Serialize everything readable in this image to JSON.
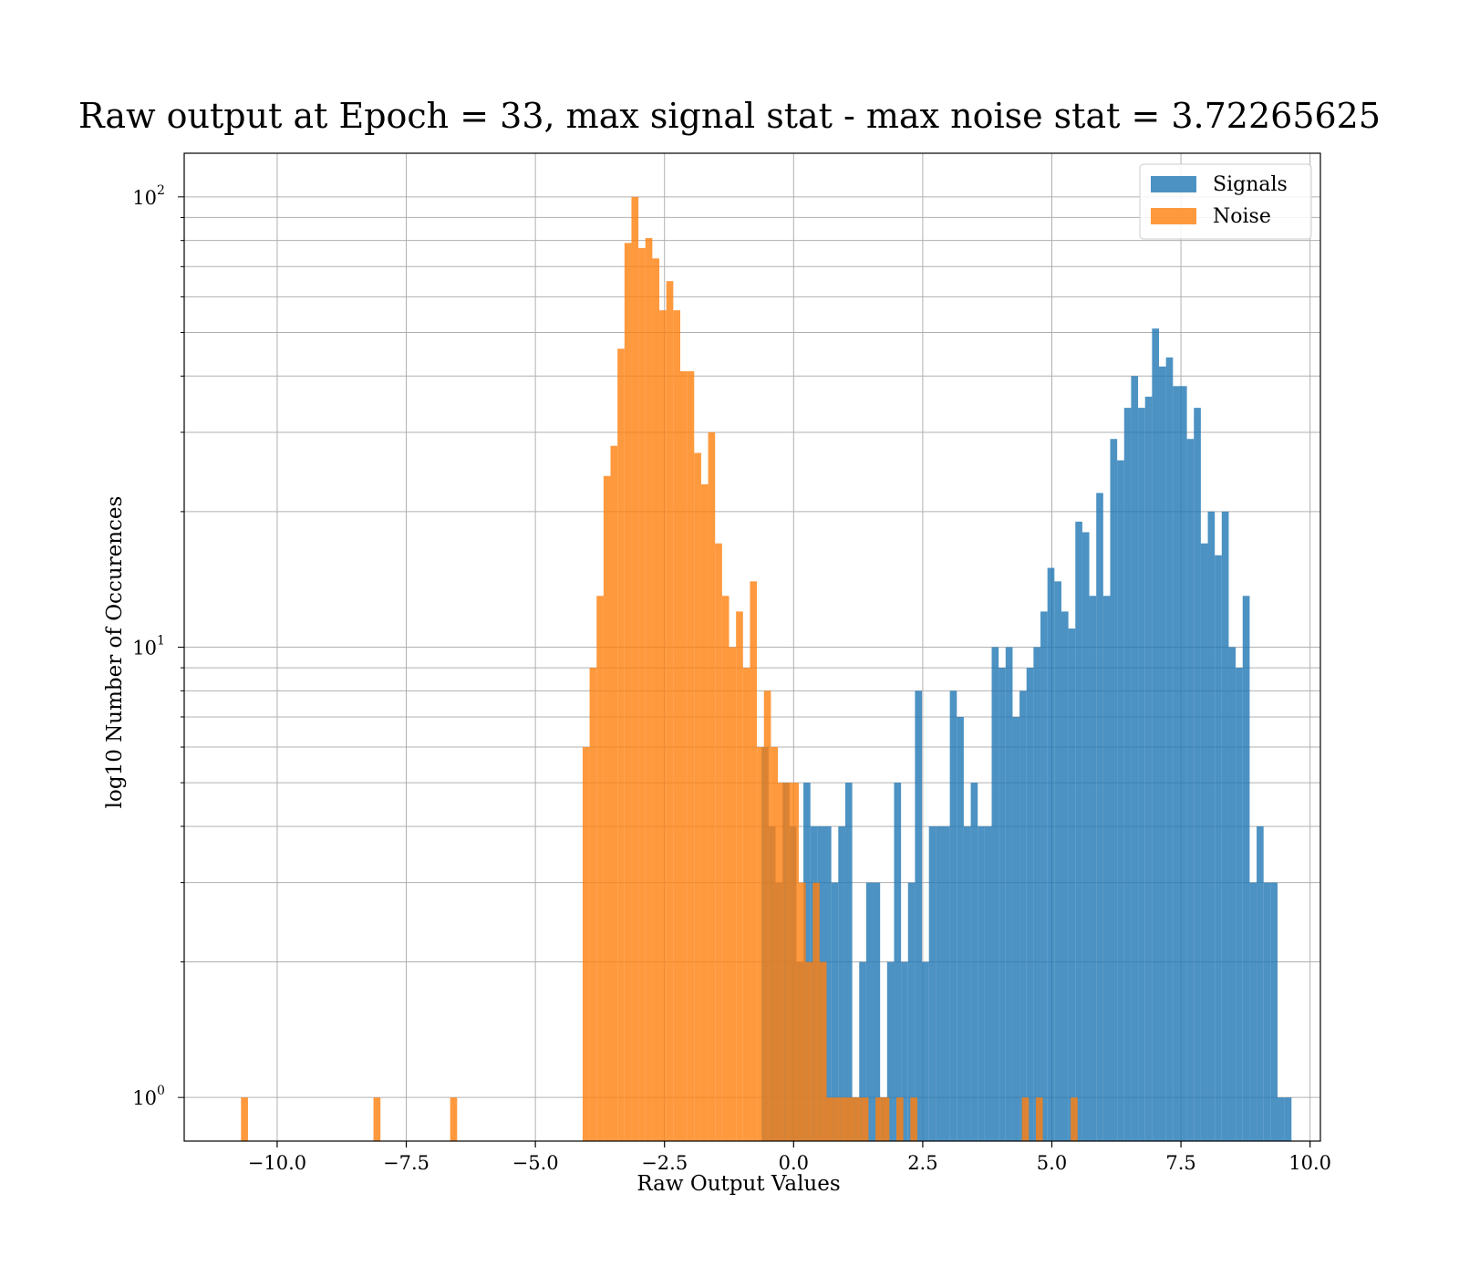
{
  "chart_data": {
    "type": "bar",
    "subtype": "histogram",
    "title": "Raw output at Epoch = 33, max signal stat - max noise stat = 3.72265625",
    "xlabel": "Raw Output Values",
    "ylabel": "log10 Number of Occurences",
    "xlim": [
      -11.8,
      10.2
    ],
    "ylim": [
      0.8,
      125
    ],
    "yscale": "log",
    "xticks": [
      -10.0,
      -7.5,
      -5.0,
      -2.5,
      0.0,
      2.5,
      5.0,
      7.5,
      10.0
    ],
    "xtick_labels": [
      "−10.0",
      "−7.5",
      "−5.0",
      "−2.5",
      "0.0",
      "2.5",
      "5.0",
      "7.5",
      "10.0"
    ],
    "yticks": [
      {
        "base": "10",
        "exp": "0",
        "value": 1
      },
      {
        "base": "10",
        "exp": "1",
        "value": 10
      },
      {
        "base": "10",
        "exp": "2",
        "value": 100
      }
    ],
    "grid": true,
    "legend_position": "top-right",
    "series": [
      {
        "name": "Signals",
        "color": "#1f77b4",
        "opacity": 0.8,
        "bin_edges_start": -0.62,
        "bin_width": 0.135,
        "values": [
          6,
          4,
          3,
          5,
          4,
          2,
          5,
          4,
          4,
          4,
          3,
          4,
          5,
          1,
          2,
          3,
          3,
          1,
          2,
          5,
          2,
          3,
          8,
          2,
          4,
          4,
          4,
          8,
          7,
          4,
          5,
          4,
          4,
          10,
          9,
          10,
          7,
          8,
          9,
          10,
          12,
          15,
          14,
          12,
          11,
          19,
          18,
          13,
          22,
          13,
          29,
          26,
          34,
          40,
          34,
          36,
          51,
          42,
          44,
          38,
          38,
          29,
          34,
          17,
          20,
          16,
          20,
          10,
          9,
          13,
          3,
          4,
          3,
          3,
          1,
          1
        ]
      },
      {
        "name": "Noise",
        "color": "#ff7f0e",
        "opacity": 0.8,
        "bin_edges_start": -10.7,
        "bin_width": 0.135,
        "values": [
          1,
          0,
          0,
          0,
          0,
          0,
          0,
          0,
          0,
          0,
          0,
          0,
          0,
          0,
          0,
          0,
          0,
          0,
          0,
          1,
          0,
          0,
          0,
          0,
          0,
          0,
          0,
          0,
          0,
          0,
          1,
          0,
          0,
          0,
          0,
          0,
          0,
          0,
          0,
          0,
          0,
          0,
          0,
          0,
          0,
          0,
          0,
          0,
          0,
          6,
          9,
          13,
          24,
          28,
          46,
          79,
          100,
          77,
          81,
          73,
          56,
          65,
          56,
          41,
          41,
          27,
          23,
          30,
          17,
          13,
          10,
          12,
          9,
          14,
          6,
          8,
          6,
          5,
          5,
          5,
          3,
          2,
          3,
          2,
          1,
          1,
          1,
          1,
          1,
          1,
          0,
          1,
          1,
          0,
          1,
          0,
          1,
          0,
          0,
          0,
          0,
          0,
          0,
          0,
          0,
          0,
          0,
          0,
          0,
          0,
          0,
          0,
          1,
          0,
          1,
          0,
          0,
          0,
          0,
          1
        ]
      }
    ]
  }
}
